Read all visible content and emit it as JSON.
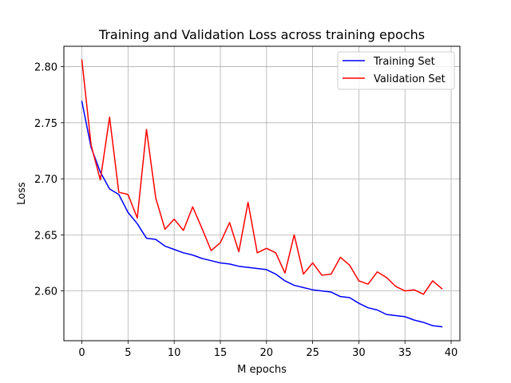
{
  "chart_data": {
    "type": "line",
    "title": "Training and Validation Loss across training epochs",
    "xlabel": "M epochs",
    "ylabel": "Loss",
    "xlim": [
      -1.95,
      40.95
    ],
    "ylim": [
      2.5556,
      2.8182
    ],
    "xticks": [
      0,
      5,
      10,
      15,
      20,
      25,
      30,
      35,
      40
    ],
    "xtick_labels": [
      "0",
      "5",
      "10",
      "15",
      "20",
      "25",
      "30",
      "35",
      "40"
    ],
    "yticks": [
      2.6,
      2.65,
      2.7,
      2.75,
      2.8
    ],
    "ytick_labels": [
      "2.60",
      "2.65",
      "2.70",
      "2.75",
      "2.80"
    ],
    "grid": true,
    "legend_position": "top-right",
    "x": [
      0,
      1,
      2,
      3,
      4,
      5,
      6,
      7,
      8,
      9,
      10,
      11,
      12,
      13,
      14,
      15,
      16,
      17,
      18,
      19,
      20,
      21,
      22,
      23,
      24,
      25,
      26,
      27,
      28,
      29,
      30,
      31,
      32,
      33,
      34,
      35,
      36,
      37,
      38,
      39
    ],
    "series": [
      {
        "name": "Training Set",
        "color": "#0000ff",
        "values": [
          2.769,
          2.728,
          2.706,
          2.691,
          2.686,
          2.67,
          2.66,
          2.647,
          2.646,
          2.64,
          2.637,
          2.634,
          2.632,
          2.629,
          2.627,
          2.625,
          2.624,
          2.622,
          2.621,
          2.62,
          2.619,
          2.615,
          2.609,
          2.605,
          2.603,
          2.601,
          2.6,
          2.599,
          2.595,
          2.594,
          2.589,
          2.585,
          2.583,
          2.579,
          2.578,
          2.577,
          2.574,
          2.572,
          2.569,
          2.568
        ]
      },
      {
        "name": "Validation Set",
        "color": "#ff0000",
        "values": [
          2.806,
          2.73,
          2.699,
          2.755,
          2.688,
          2.686,
          2.665,
          2.744,
          2.683,
          2.655,
          2.664,
          2.654,
          2.675,
          2.656,
          2.636,
          2.643,
          2.661,
          2.635,
          2.679,
          2.634,
          2.638,
          2.634,
          2.616,
          2.65,
          2.615,
          2.625,
          2.614,
          2.615,
          2.63,
          2.623,
          2.609,
          2.606,
          2.617,
          2.612,
          2.604,
          2.6,
          2.601,
          2.597,
          2.609,
          2.602
        ]
      }
    ]
  }
}
